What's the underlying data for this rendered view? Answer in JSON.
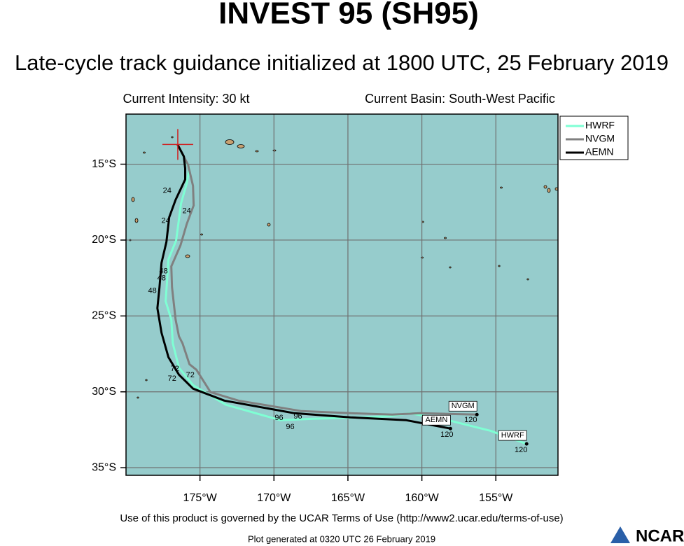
{
  "chart_data": {
    "type": "track",
    "title": "INVEST 95 (SH95)",
    "subtitle": "Late-cycle track guidance initialized at 1800 UTC, 25 February 2019",
    "info_left": "Current Intensity: 30 kt",
    "info_right": "Current Basin: South-West Pacific",
    "footer": "Use of this product is governed by the UCAR Terms of Use (http://www2.ucar.edu/terms-of-use)",
    "generated": "Plot generated at 0320 UTC   26 February 2019",
    "logo": "NCAR",
    "xlim": [
      -180,
      -150.8
    ],
    "ylim": [
      -35.5,
      -11.7
    ],
    "xticks": [
      {
        "value": -175,
        "label": "175°W"
      },
      {
        "value": -170,
        "label": "170°W"
      },
      {
        "value": -165,
        "label": "165°W"
      },
      {
        "value": -160,
        "label": "160°W"
      },
      {
        "value": -155,
        "label": "155°W"
      }
    ],
    "yticks": [
      {
        "value": -15,
        "label": "15°S"
      },
      {
        "value": -20,
        "label": "20°S"
      },
      {
        "value": -25,
        "label": "25°S"
      },
      {
        "value": -30,
        "label": "30°S"
      },
      {
        "value": -35,
        "label": "35°S"
      }
    ],
    "grid": true,
    "background": "#96cccc",
    "current_position": {
      "x": -176.5,
      "y": -13.7,
      "color": "#d02020"
    },
    "series": [
      {
        "name": "HWRF",
        "color": "#7fffd4",
        "x": [
          -176.51,
          -175.71,
          -175.9,
          -176.28,
          -176.61,
          -177.13,
          -177.22,
          -177.32,
          -176.94,
          -176.84,
          -176.42,
          -175.47,
          -173.25,
          -169.56,
          -167.2,
          -163.84,
          -162.0,
          -160.82,
          -158.22,
          -155.38,
          -152.92
        ],
        "values": [
          -13.71,
          -15.28,
          -16.29,
          -17.58,
          -20.02,
          -21.27,
          -22.65,
          -24.03,
          -25.23,
          -26.8,
          -28.41,
          -29.56,
          -30.85,
          -31.87,
          -31.77,
          -31.68,
          -31.59,
          -31.41,
          -31.87,
          -32.56,
          -33.43
        ]
      },
      {
        "name": "NVGM",
        "color": "#808080",
        "x": [
          -176.51,
          -175.8,
          -175.47,
          -175.43,
          -175.9,
          -176.32,
          -176.94,
          -176.89,
          -176.65,
          -176.42,
          -176.18,
          -175.71,
          -175.24,
          -174.29,
          -172.4,
          -168.14,
          -164.83,
          -162.0,
          -160.11,
          -156.28
        ],
        "values": [
          -13.71,
          -15.05,
          -16.43,
          -17.72,
          -18.96,
          -20.35,
          -21.73,
          -23.11,
          -25.23,
          -26.34,
          -26.8,
          -28.18,
          -28.55,
          -30.02,
          -30.58,
          -31.27,
          -31.41,
          -31.5,
          -31.41,
          -31.5
        ]
      },
      {
        "name": "AEMN",
        "color": "#000000",
        "x": [
          -176.51,
          -176.09,
          -176.0,
          -176.0,
          -176.65,
          -177.08,
          -177.27,
          -177.6,
          -177.74,
          -177.88,
          -177.6,
          -177.13,
          -176.42,
          -175.47,
          -173.35,
          -168.62,
          -164.83,
          -161.05,
          -158.07
        ],
        "values": [
          -13.71,
          -14.49,
          -15.28,
          -16.01,
          -17.35,
          -18.5,
          -20.12,
          -21.5,
          -23.11,
          -24.49,
          -26.11,
          -27.72,
          -28.87,
          -29.79,
          -30.58,
          -31.41,
          -31.68,
          -31.87,
          -32.42
        ]
      }
    ],
    "annotations": [
      {
        "text": "24",
        "x": -177.22,
        "y": -16.75
      },
      {
        "text": "24",
        "x": -175.9,
        "y": -18.09
      },
      {
        "text": "24",
        "x": -177.32,
        "y": -18.73
      },
      {
        "text": "48",
        "x": -177.46,
        "y": -22.05
      },
      {
        "text": "48",
        "x": -177.6,
        "y": -22.51
      },
      {
        "text": "48",
        "x": -178.22,
        "y": -23.34
      },
      {
        "text": "72",
        "x": -176.7,
        "y": -28.5
      },
      {
        "text": "72",
        "x": -175.66,
        "y": -28.92
      },
      {
        "text": "72",
        "x": -176.89,
        "y": -29.15
      },
      {
        "text": "96",
        "x": -169.66,
        "y": -31.73
      },
      {
        "text": "96",
        "x": -168.38,
        "y": -31.64
      },
      {
        "text": "96",
        "x": -168.9,
        "y": -32.33
      },
      {
        "text": "120",
        "x": -158.31,
        "y": -32.83
      },
      {
        "text": "120",
        "x": -156.7,
        "y": -31.87
      },
      {
        "text": "120",
        "x": -153.3,
        "y": -33.85
      }
    ]
  }
}
